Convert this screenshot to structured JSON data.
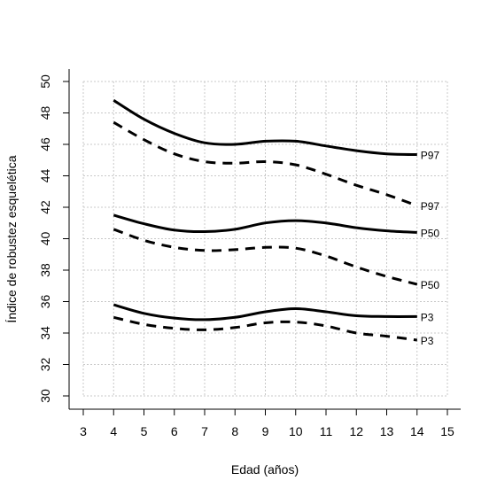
{
  "chart_data": {
    "type": "line",
    "xlabel": "Edad (años)",
    "ylabel": "Índice de robustez esquelética",
    "xlim": [
      3,
      15
    ],
    "ylim": [
      30,
      50
    ],
    "x_ticks": [
      "3",
      "4",
      "5",
      "6",
      "7",
      "8",
      "9",
      "10",
      "11",
      "12",
      "13",
      "14",
      "15"
    ],
    "y_ticks": [
      "30",
      "32",
      "34",
      "36",
      "38",
      "40",
      "42",
      "44",
      "46",
      "48",
      "50"
    ],
    "grid": true,
    "series": [
      {
        "name": "P97",
        "style": "solid",
        "x": [
          4,
          5,
          6,
          7,
          8,
          9,
          10,
          11,
          12,
          13,
          14
        ],
        "y": [
          48.8,
          47.6,
          46.7,
          46.1,
          46.0,
          46.2,
          46.2,
          45.9,
          45.6,
          45.4,
          45.35
        ]
      },
      {
        "name": "P97",
        "style": "dashed",
        "x": [
          4,
          5,
          6,
          7,
          8,
          9,
          10,
          11,
          12,
          13,
          14
        ],
        "y": [
          47.4,
          46.3,
          45.4,
          44.9,
          44.8,
          44.9,
          44.7,
          44.1,
          43.4,
          42.8,
          42.1
        ]
      },
      {
        "name": "P50",
        "style": "solid",
        "x": [
          4,
          5,
          6,
          7,
          8,
          9,
          10,
          11,
          12,
          13,
          14
        ],
        "y": [
          41.5,
          40.95,
          40.55,
          40.45,
          40.6,
          41.0,
          41.15,
          41.0,
          40.7,
          40.5,
          40.4
        ]
      },
      {
        "name": "P50",
        "style": "dashed",
        "x": [
          4,
          5,
          6,
          7,
          8,
          9,
          10,
          11,
          12,
          13,
          14
        ],
        "y": [
          40.6,
          39.9,
          39.45,
          39.25,
          39.3,
          39.45,
          39.4,
          38.9,
          38.2,
          37.6,
          37.1
        ]
      },
      {
        "name": "P3",
        "style": "solid",
        "x": [
          4,
          5,
          6,
          7,
          8,
          9,
          10,
          11,
          12,
          13,
          14
        ],
        "y": [
          35.8,
          35.25,
          34.95,
          34.85,
          35.0,
          35.35,
          35.55,
          35.35,
          35.1,
          35.05,
          35.05
        ]
      },
      {
        "name": "P3",
        "style": "dashed",
        "x": [
          4,
          5,
          6,
          7,
          8,
          9,
          10,
          11,
          12,
          13,
          14
        ],
        "y": [
          35.0,
          34.55,
          34.3,
          34.2,
          34.35,
          34.65,
          34.7,
          34.45,
          34.0,
          33.8,
          33.55
        ]
      }
    ]
  }
}
